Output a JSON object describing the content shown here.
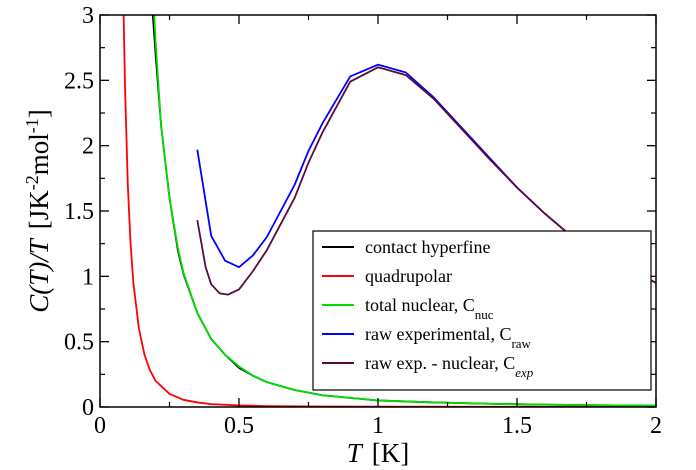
{
  "chart_data": {
    "type": "line",
    "title": "",
    "xlabel": {
      "var": "T",
      "unit": "[K]"
    },
    "ylabel": {
      "func": "C(T)/T",
      "unit_prefix": "[JK",
      "unit_exp1": "-2",
      "unit_mid": "mol",
      "unit_exp2": "-1",
      "unit_suffix": "]"
    },
    "xlim": [
      0,
      2
    ],
    "ylim": [
      0,
      3
    ],
    "xticks": [
      0,
      0.5,
      1,
      1.5,
      2
    ],
    "yticks": [
      0,
      0.5,
      1,
      1.5,
      2,
      2.5,
      3
    ],
    "xtick_labels": [
      "0",
      "0.5",
      "1",
      "1.5",
      "2"
    ],
    "ytick_labels": [
      "0",
      "0.5",
      "1",
      "1.5",
      "2",
      "2.5",
      "3"
    ],
    "grid": false,
    "legend_placement": "lower-right",
    "series": [
      {
        "name": "contact hyperfine",
        "label_text": "contact hyperfine",
        "label_sub": "",
        "sub_italic": false,
        "color": "#000000",
        "x": [
          0.19,
          0.2,
          0.22,
          0.25,
          0.28,
          0.3,
          0.35,
          0.4,
          0.45,
          0.5,
          0.55,
          0.6,
          0.7,
          0.8,
          0.9,
          1.0,
          1.2,
          1.4,
          1.6,
          1.8,
          2.0
        ],
        "y": [
          3.0,
          2.7,
          2.15,
          1.6,
          1.2,
          1.02,
          0.72,
          0.52,
          0.4,
          0.3,
          0.24,
          0.19,
          0.13,
          0.09,
          0.07,
          0.05,
          0.035,
          0.025,
          0.018,
          0.013,
          0.01
        ]
      },
      {
        "name": "quadrupolar",
        "label_text": "quadrupolar",
        "label_sub": "",
        "sub_italic": false,
        "color": "#ff0000",
        "x": [
          0.085,
          0.09,
          0.1,
          0.11,
          0.12,
          0.14,
          0.16,
          0.18,
          0.2,
          0.25,
          0.3,
          0.35,
          0.4,
          0.5,
          0.6,
          0.8,
          1.0,
          1.5,
          2.0
        ],
        "y": [
          3.0,
          2.45,
          1.7,
          1.25,
          0.95,
          0.6,
          0.4,
          0.28,
          0.2,
          0.1,
          0.055,
          0.035,
          0.022,
          0.012,
          0.007,
          0.004,
          0.003,
          0.002,
          0.001
        ]
      },
      {
        "name": "total nuclear, C_nuc",
        "label_text": "total nuclear, C",
        "label_sub": "nuc",
        "sub_italic": false,
        "color": "#00dd00",
        "x": [
          0.195,
          0.2,
          0.22,
          0.25,
          0.28,
          0.3,
          0.35,
          0.4,
          0.45,
          0.5,
          0.55,
          0.6,
          0.7,
          0.8,
          0.9,
          1.0,
          1.2,
          1.4,
          1.6,
          1.8,
          2.0
        ],
        "y": [
          3.0,
          2.8,
          2.15,
          1.6,
          1.22,
          1.03,
          0.72,
          0.52,
          0.4,
          0.31,
          0.24,
          0.19,
          0.13,
          0.09,
          0.07,
          0.05,
          0.035,
          0.025,
          0.018,
          0.013,
          0.01
        ]
      },
      {
        "name": "raw experimental, C_raw",
        "label_text": "raw experimental, C",
        "label_sub": "raw",
        "sub_italic": false,
        "color": "#0000ff",
        "x": [
          0.35,
          0.4,
          0.45,
          0.5,
          0.55,
          0.6,
          0.7,
          0.75,
          0.8,
          0.9,
          1.0,
          1.1,
          1.2,
          1.3,
          1.4,
          1.5,
          1.6,
          1.7,
          1.8,
          1.9,
          2.0
        ],
        "y": [
          1.97,
          1.31,
          1.12,
          1.07,
          1.16,
          1.3,
          1.7,
          1.96,
          2.17,
          2.53,
          2.62,
          2.56,
          2.37,
          2.14,
          1.91,
          1.68,
          1.48,
          1.3,
          1.16,
          1.06,
          0.95
        ]
      },
      {
        "name": "raw exp. - nuclear, C_exp",
        "label_text": "raw exp. - nuclear, C",
        "label_sub": "exp",
        "sub_italic": true,
        "color": "#5a0a3c",
        "x": [
          0.35,
          0.38,
          0.4,
          0.43,
          0.46,
          0.5,
          0.55,
          0.6,
          0.7,
          0.75,
          0.8,
          0.9,
          1.0,
          1.1,
          1.2,
          1.3,
          1.4,
          1.5,
          1.6,
          1.7,
          1.8,
          1.9,
          2.0
        ],
        "y": [
          1.43,
          1.07,
          0.94,
          0.87,
          0.86,
          0.9,
          1.04,
          1.2,
          1.6,
          1.87,
          2.1,
          2.49,
          2.6,
          2.54,
          2.36,
          2.13,
          1.9,
          1.68,
          1.48,
          1.3,
          1.16,
          1.06,
          0.95
        ]
      }
    ]
  }
}
